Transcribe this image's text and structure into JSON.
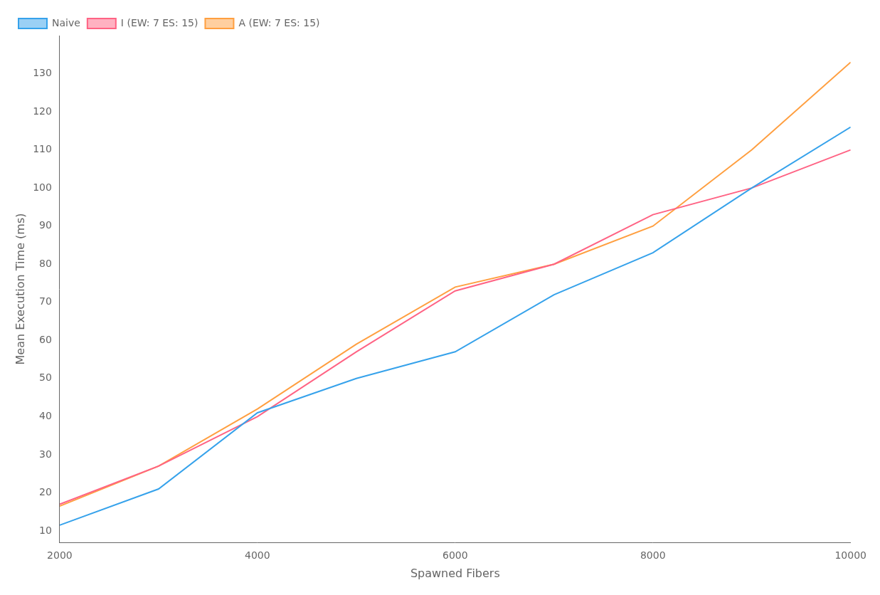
{
  "chart_data": {
    "type": "line",
    "xlabel": "Spawned Fibers",
    "ylabel": "Mean Execution Time (ms)",
    "x": [
      2000,
      3000,
      4000,
      5000,
      6000,
      7000,
      8000,
      9000,
      10000
    ],
    "series": [
      {
        "name": "Naive",
        "values": [
          11.5,
          21,
          41,
          50,
          57,
          72,
          83,
          100,
          116
        ]
      },
      {
        "name": "I (EW: 7 ES: 15)",
        "values": [
          17,
          27,
          40,
          57,
          73,
          80,
          93,
          100,
          110
        ]
      },
      {
        "name": "A (EW: 7 ES: 15)",
        "values": [
          16.5,
          27,
          42,
          59,
          74,
          80,
          90,
          110,
          133
        ]
      }
    ],
    "xlim": [
      2000,
      10000
    ],
    "ylim": [
      7,
      140
    ],
    "xticks": [
      2000,
      4000,
      6000,
      8000,
      10000
    ],
    "yticks": [
      10,
      20,
      30,
      40,
      50,
      60,
      70,
      80,
      90,
      100,
      110,
      120,
      130
    ],
    "grid": false,
    "legend": "upper left"
  }
}
